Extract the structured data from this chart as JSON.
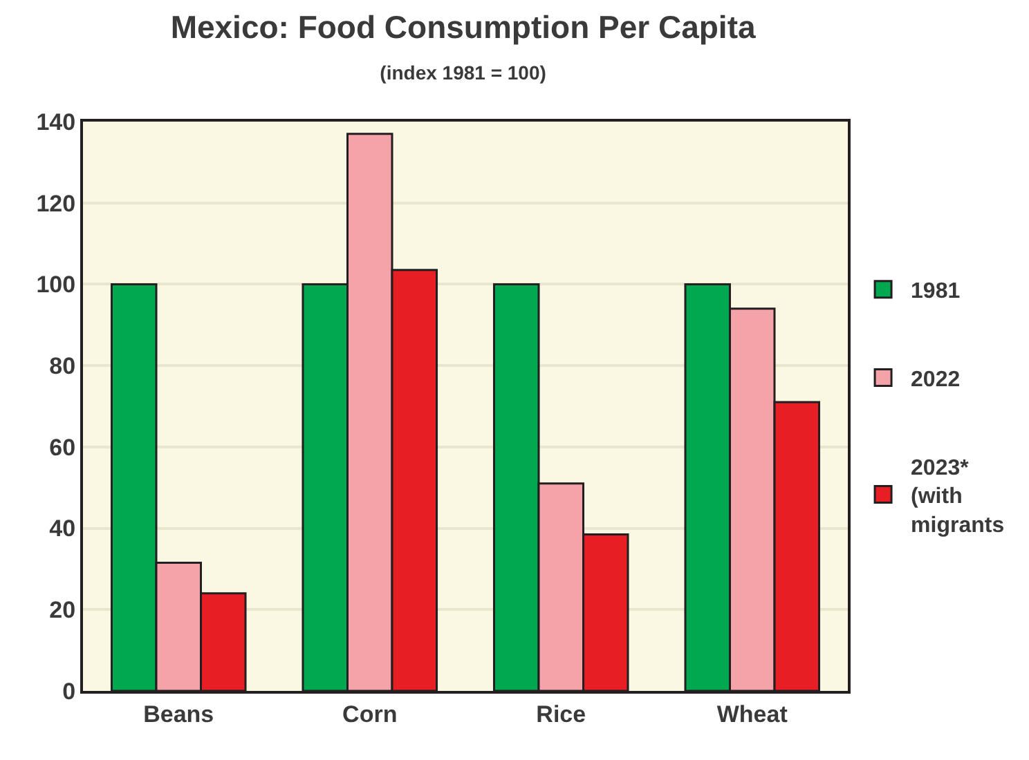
{
  "chart_data": {
    "type": "bar",
    "title": "Mexico: Food Consumption Per Capita",
    "subtitle": "(index 1981 = 100)",
    "categories": [
      "Beans",
      "Corn",
      "Rice",
      "Wheat"
    ],
    "series": [
      {
        "name": "1981",
        "color": "#00a84f",
        "values": [
          100,
          100,
          100,
          100
        ]
      },
      {
        "name": "2022",
        "color": "#f4a3a8",
        "values": [
          31.5,
          137,
          51,
          94
        ]
      },
      {
        "name": "2023* (with migrants",
        "color": "#e81e25",
        "values": [
          24,
          103.5,
          38.5,
          71
        ]
      }
    ],
    "ylim": [
      0,
      140
    ],
    "yticks": [
      0,
      20,
      40,
      60,
      80,
      100,
      120,
      140
    ],
    "grid": "y",
    "legend": "right"
  }
}
